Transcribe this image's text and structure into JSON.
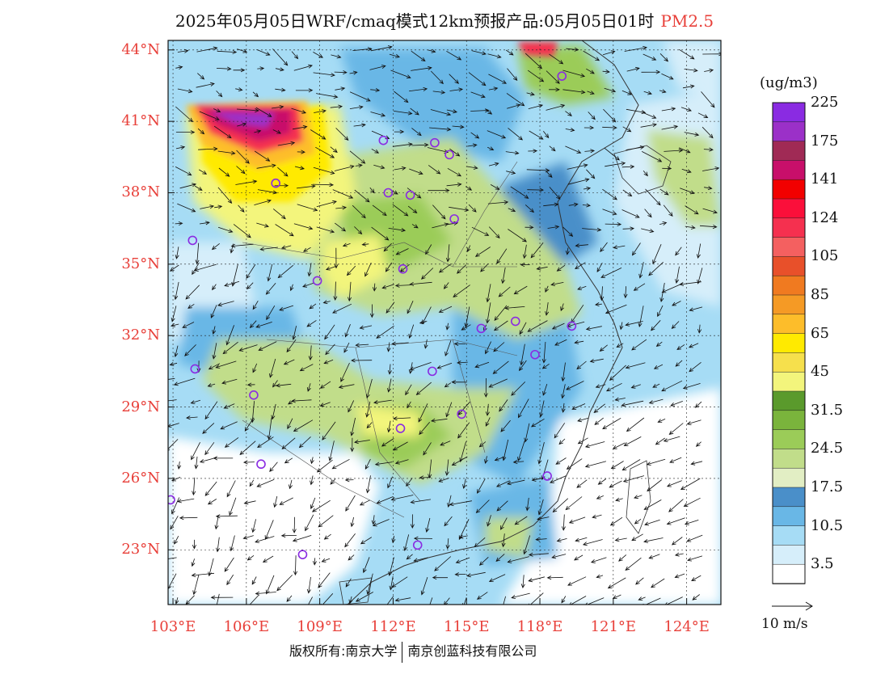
{
  "title": {
    "main": "2025年05月05日WRF/cmaq模式12km预报产品:05月05日01时",
    "pollutant": "PM2.5"
  },
  "lat_labels": [
    "44°N",
    "41°N",
    "38°N",
    "35°N",
    "32°N",
    "29°N",
    "26°N",
    "23°N"
  ],
  "lat_values": [
    44,
    41,
    38,
    35,
    32,
    29,
    26,
    23
  ],
  "lon_labels": [
    "103°E",
    "106°E",
    "109°E",
    "112°E",
    "115°E",
    "118°E",
    "121°E",
    "124°E"
  ],
  "lon_values": [
    103,
    106,
    109,
    112,
    115,
    118,
    121,
    124
  ],
  "map_extent": {
    "lon_min": 102.8,
    "lon_max": 125.4,
    "lat_min": 20.7,
    "lat_max": 44.4
  },
  "colorbar": {
    "unit": "(ug/m3)",
    "colors": [
      "#ffffff",
      "#d6eefa",
      "#a6dcf5",
      "#69b7e6",
      "#4a8fc9",
      "#e2eec4",
      "#c1dd8a",
      "#9bcc58",
      "#7ab43c",
      "#5a9a2c",
      "#f3f57c",
      "#f6e04c",
      "#ffea00",
      "#fdbd2a",
      "#f59a25",
      "#f07a20",
      "#e8502a",
      "#f46060",
      "#f5304f",
      "#fb0f3a",
      "#f20000",
      "#c80f6a",
      "#a02a55",
      "#9b30c8",
      "#8a2be2"
    ],
    "labels": [
      "3.5",
      "10.5",
      "17.5",
      "24.5",
      "31.5",
      "45",
      "65",
      "85",
      "105",
      "124",
      "141",
      "175",
      "225"
    ]
  },
  "wind_reference": {
    "label": "10 m/s"
  },
  "stations": [
    [
      118.9,
      42.9
    ],
    [
      111.6,
      40.2
    ],
    [
      113.7,
      40.1
    ],
    [
      114.3,
      39.6
    ],
    [
      107.2,
      38.4
    ],
    [
      111.8,
      38.0
    ],
    [
      112.7,
      37.9
    ],
    [
      114.5,
      36.9
    ],
    [
      103.8,
      36.0
    ],
    [
      112.4,
      34.8
    ],
    [
      108.9,
      34.3
    ],
    [
      117.0,
      32.6
    ],
    [
      115.6,
      32.3
    ],
    [
      119.3,
      32.4
    ],
    [
      117.8,
      31.2
    ],
    [
      103.9,
      30.6
    ],
    [
      113.6,
      30.5
    ],
    [
      106.3,
      29.5
    ],
    [
      114.8,
      28.7
    ],
    [
      112.3,
      28.1
    ],
    [
      106.6,
      26.6
    ],
    [
      118.3,
      26.1
    ],
    [
      102.9,
      25.1
    ],
    [
      108.3,
      22.8
    ],
    [
      113.0,
      23.2
    ]
  ],
  "footer": {
    "copyright": "版权所有:南京大学",
    "company": "南京创蓝科技有限公司"
  }
}
